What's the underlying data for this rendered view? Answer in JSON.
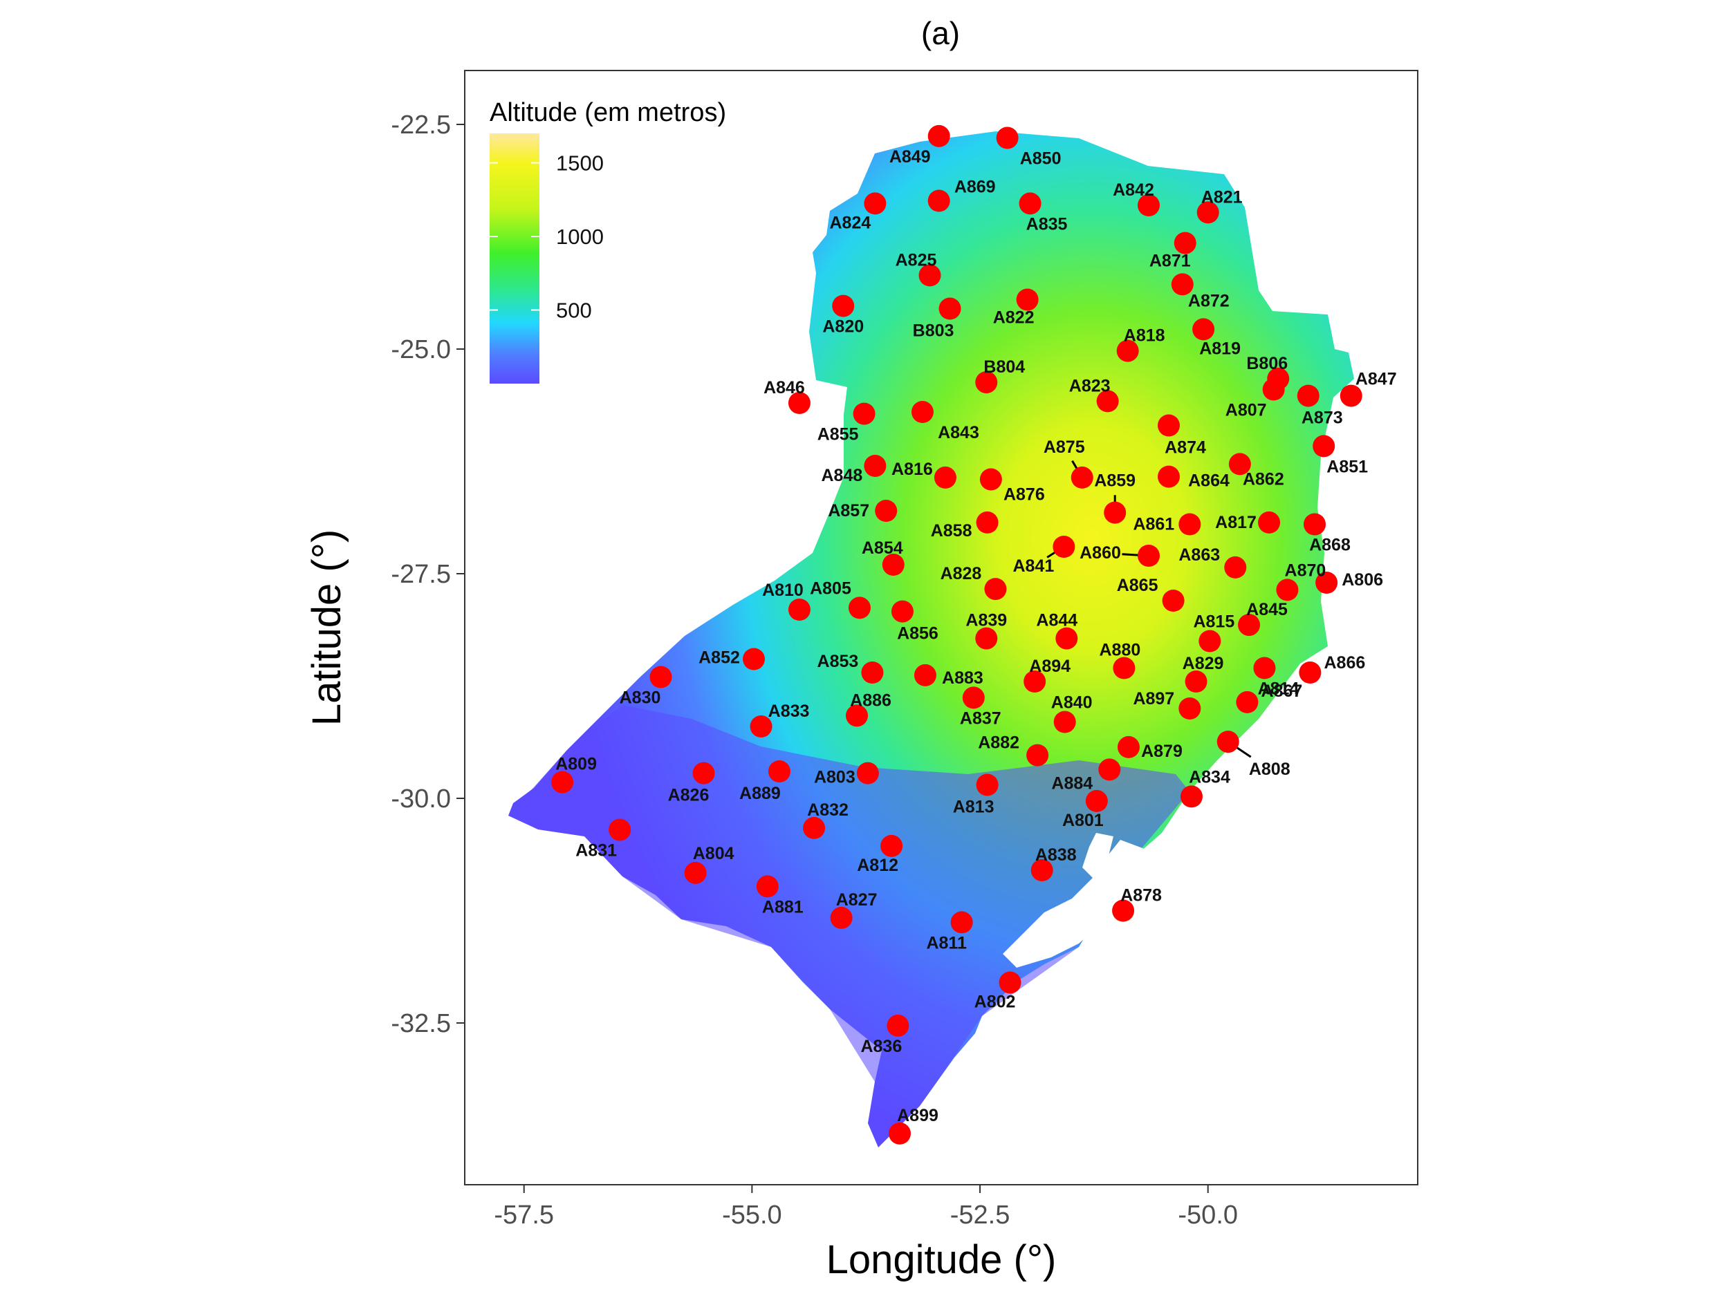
{
  "title": "(a)",
  "chart_data": {
    "type": "scatter",
    "xlabel": "Longitude (°)",
    "ylabel": "Latitude (°)",
    "xlim": [
      -58.15,
      -47.7
    ],
    "ylim": [
      -34.3,
      -21.9
    ],
    "x_ticks": [
      -57.5,
      -55.0,
      -52.5,
      -50.0
    ],
    "x_tick_labels": [
      "-57.5",
      "-55.0",
      "-52.5",
      "-50.0"
    ],
    "y_ticks": [
      -22.5,
      -25.0,
      -27.5,
      -30.0,
      -32.5
    ],
    "y_tick_labels": [
      "-22.5",
      "-25.0",
      "-27.5",
      "-30.0",
      "-32.5"
    ],
    "legend": {
      "title": "Altitude (em metros)",
      "position": "top-left",
      "range": [
        0,
        1700
      ],
      "ticks": [
        500,
        1000,
        1500
      ],
      "tick_labels": [
        "500",
        "1000",
        "1500"
      ],
      "colors": [
        "#5b4bff",
        "#4f80ff",
        "#22d7ff",
        "#2ee88a",
        "#40f02a",
        "#c6f51a",
        "#f5f51c",
        "#ffe79e"
      ]
    },
    "colors": {
      "point": "#ff0000",
      "land_low": "#5b4bff",
      "land_high": "#f5f51c",
      "lagoon": "#ffffff"
    },
    "grid": false,
    "series": [
      {
        "points": [
          {
            "id": "A849",
            "lon": -52.95,
            "lat": -22.63
          },
          {
            "id": "A850",
            "lon": -52.2,
            "lat": -22.65
          },
          {
            "id": "A842",
            "lon": -50.65,
            "lat": -23.4
          },
          {
            "id": "A821",
            "lon": -50.0,
            "lat": -23.48
          },
          {
            "id": "A824",
            "lon": -53.65,
            "lat": -23.38
          },
          {
            "id": "A869",
            "lon": -52.95,
            "lat": -23.35
          },
          {
            "id": "A835",
            "lon": -51.95,
            "lat": -23.38
          },
          {
            "id": "A871",
            "lon": -50.25,
            "lat": -23.82
          },
          {
            "id": "A825",
            "lon": -53.05,
            "lat": -24.18
          },
          {
            "id": "A872",
            "lon": -50.28,
            "lat": -24.28
          },
          {
            "id": "A820",
            "lon": -54.0,
            "lat": -24.52
          },
          {
            "id": "B803",
            "lon": -52.83,
            "lat": -24.55
          },
          {
            "id": "A822",
            "lon": -51.98,
            "lat": -24.45
          },
          {
            "id": "A819",
            "lon": -50.05,
            "lat": -24.78
          },
          {
            "id": "A818",
            "lon": -50.88,
            "lat": -25.02
          },
          {
            "id": "B806",
            "lon": -49.23,
            "lat": -25.33
          },
          {
            "id": "A847",
            "lon": -48.43,
            "lat": -25.52
          },
          {
            "id": "B804",
            "lon": -52.43,
            "lat": -25.37
          },
          {
            "id": "A823",
            "lon": -51.1,
            "lat": -25.58
          },
          {
            "id": "A807",
            "lon": -49.28,
            "lat": -25.45
          },
          {
            "id": "A873",
            "lon": -48.9,
            "lat": -25.52
          },
          {
            "id": "A846",
            "lon": -54.48,
            "lat": -25.6
          },
          {
            "id": "A855",
            "lon": -53.77,
            "lat": -25.72
          },
          {
            "id": "A843",
            "lon": -53.13,
            "lat": -25.7
          },
          {
            "id": "A874",
            "lon": -50.43,
            "lat": -25.85
          },
          {
            "id": "A851",
            "lon": -48.73,
            "lat": -26.08
          },
          {
            "id": "A848",
            "lon": -53.65,
            "lat": -26.3
          },
          {
            "id": "A816",
            "lon": -52.88,
            "lat": -26.43
          },
          {
            "id": "A876",
            "lon": -52.38,
            "lat": -26.45
          },
          {
            "id": "A875",
            "lon": -51.38,
            "lat": -26.43
          },
          {
            "id": "A864",
            "lon": -50.43,
            "lat": -26.42
          },
          {
            "id": "A862",
            "lon": -49.65,
            "lat": -26.28
          },
          {
            "id": "A859",
            "lon": -51.02,
            "lat": -26.82
          },
          {
            "id": "A857",
            "lon": -53.53,
            "lat": -26.8
          },
          {
            "id": "A858",
            "lon": -52.42,
            "lat": -26.93
          },
          {
            "id": "A861",
            "lon": -50.2,
            "lat": -26.95
          },
          {
            "id": "A817",
            "lon": -49.33,
            "lat": -26.93
          },
          {
            "id": "A868",
            "lon": -48.83,
            "lat": -26.95
          },
          {
            "id": "A841",
            "lon": -51.58,
            "lat": -27.2
          },
          {
            "id": "A860",
            "lon": -50.65,
            "lat": -27.3
          },
          {
            "id": "A854",
            "lon": -53.45,
            "lat": -27.4
          },
          {
            "id": "A863",
            "lon": -49.7,
            "lat": -27.43
          },
          {
            "id": "A806",
            "lon": -48.7,
            "lat": -27.6
          },
          {
            "id": "A828",
            "lon": -52.33,
            "lat": -27.67
          },
          {
            "id": "A870",
            "lon": -49.13,
            "lat": -27.68
          },
          {
            "id": "A865",
            "lon": -50.38,
            "lat": -27.8
          },
          {
            "id": "A805",
            "lon": -53.82,
            "lat": -27.88
          },
          {
            "id": "A856",
            "lon": -53.35,
            "lat": -27.92
          },
          {
            "id": "A810",
            "lon": -54.48,
            "lat": -27.9
          },
          {
            "id": "A815",
            "lon": -49.98,
            "lat": -28.25
          },
          {
            "id": "A839",
            "lon": -52.43,
            "lat": -28.22
          },
          {
            "id": "A844",
            "lon": -51.55,
            "lat": -28.22
          },
          {
            "id": "A845",
            "lon": -49.55,
            "lat": -28.07
          },
          {
            "id": "A830",
            "lon": -56.0,
            "lat": -28.65
          },
          {
            "id": "A852",
            "lon": -54.98,
            "lat": -28.45
          },
          {
            "id": "A880",
            "lon": -50.92,
            "lat": -28.55
          },
          {
            "id": "A829",
            "lon": -50.13,
            "lat": -28.7
          },
          {
            "id": "A866",
            "lon": -48.88,
            "lat": -28.6
          },
          {
            "id": "A814",
            "lon": -49.38,
            "lat": -28.55
          },
          {
            "id": "A853",
            "lon": -53.68,
            "lat": -28.6
          },
          {
            "id": "A883",
            "lon": -53.1,
            "lat": -28.63
          },
          {
            "id": "A894",
            "lon": -51.9,
            "lat": -28.7
          },
          {
            "id": "A837",
            "lon": -52.57,
            "lat": -28.88
          },
          {
            "id": "A897",
            "lon": -50.2,
            "lat": -29.0
          },
          {
            "id": "A867",
            "lon": -49.57,
            "lat": -28.93
          },
          {
            "id": "A833",
            "lon": -54.9,
            "lat": -29.2
          },
          {
            "id": "A886",
            "lon": -53.85,
            "lat": -29.08
          },
          {
            "id": "A840",
            "lon": -51.57,
            "lat": -29.15
          },
          {
            "id": "A879",
            "lon": -50.87,
            "lat": -29.43
          },
          {
            "id": "A808",
            "lon": -49.78,
            "lat": -29.37
          },
          {
            "id": "A809",
            "lon": -57.08,
            "lat": -29.82
          },
          {
            "id": "A826",
            "lon": -55.53,
            "lat": -29.72
          },
          {
            "id": "A889",
            "lon": -54.7,
            "lat": -29.7
          },
          {
            "id": "A803",
            "lon": -53.73,
            "lat": -29.72
          },
          {
            "id": "A882",
            "lon": -51.87,
            "lat": -29.52
          },
          {
            "id": "A884",
            "lon": -51.08,
            "lat": -29.68
          },
          {
            "id": "A813",
            "lon": -52.42,
            "lat": -29.85
          },
          {
            "id": "A801",
            "lon": -51.22,
            "lat": -30.03
          },
          {
            "id": "A834",
            "lon": -50.18,
            "lat": -29.98
          },
          {
            "id": "A831",
            "lon": -56.45,
            "lat": -30.35
          },
          {
            "id": "A832",
            "lon": -54.32,
            "lat": -30.33
          },
          {
            "id": "A812",
            "lon": -53.47,
            "lat": -30.53
          },
          {
            "id": "A838",
            "lon": -51.82,
            "lat": -30.8
          },
          {
            "id": "A804",
            "lon": -55.62,
            "lat": -30.83
          },
          {
            "id": "A881",
            "lon": -54.83,
            "lat": -30.98
          },
          {
            "id": "A827",
            "lon": -54.02,
            "lat": -31.33
          },
          {
            "id": "A811",
            "lon": -52.7,
            "lat": -31.38
          },
          {
            "id": "A878",
            "lon": -50.93,
            "lat": -31.25
          },
          {
            "id": "A802",
            "lon": -52.17,
            "lat": -32.05
          },
          {
            "id": "A836",
            "lon": -53.4,
            "lat": -32.53
          },
          {
            "id": "A899",
            "lon": -53.38,
            "lat": -33.73
          }
        ]
      }
    ]
  }
}
